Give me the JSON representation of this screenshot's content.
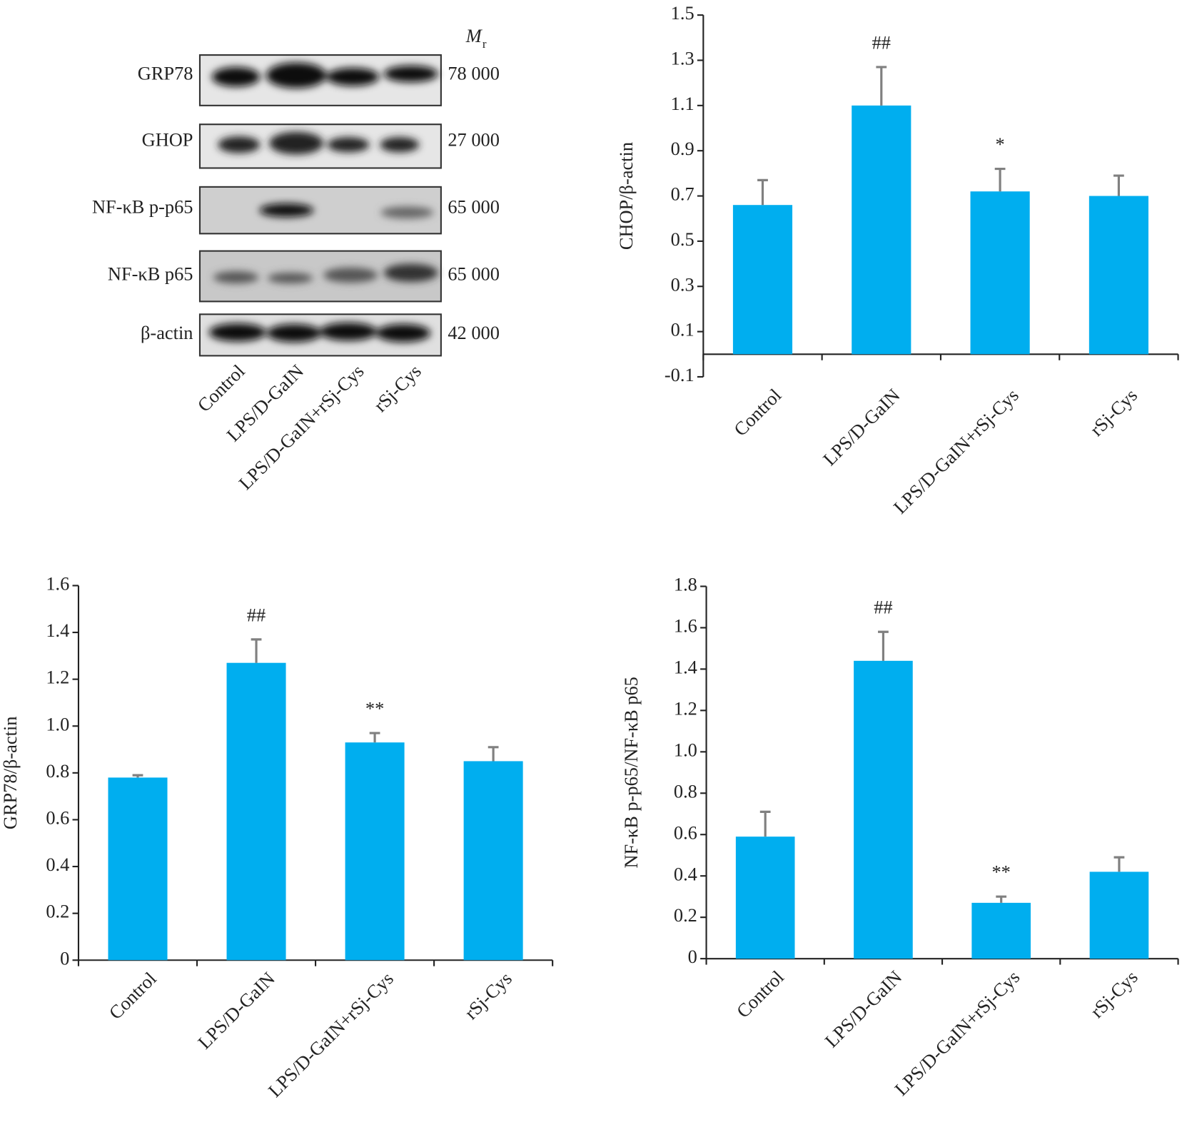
{
  "blot": {
    "mr_header": {
      "symbol": "M",
      "subscript": "r"
    },
    "rows": [
      {
        "label": "GRP78",
        "mr": "78 000"
      },
      {
        "label": "GHOP",
        "mr": "27 000"
      },
      {
        "label": "NF-κB p-p65",
        "mr": "65 000"
      },
      {
        "label": "NF-κB p65",
        "mr": "65 000"
      },
      {
        "label": "β-actin",
        "mr": "42 000"
      }
    ],
    "lanes": [
      "Control",
      "LPS/D-GaIN",
      "LPS/D-GaIN+rSj-Cys",
      "rSj-Cys"
    ]
  },
  "chart_data": [
    {
      "type": "bar",
      "ylabel": "CHOP/β-actin",
      "categories": [
        "Control",
        "LPS/D-GaIN",
        "LPS/D-GaIN+rSj-Cys",
        "rSj-Cys"
      ],
      "values": [
        0.66,
        1.1,
        0.72,
        0.7
      ],
      "errors": [
        0.11,
        0.17,
        0.1,
        0.09
      ],
      "annotations": [
        null,
        "##",
        "*",
        null
      ],
      "color": "#00aeef",
      "error_color": "#808080",
      "ylim": [
        -0.1,
        1.5
      ],
      "yticks": [
        -0.1,
        0.1,
        0.3,
        0.5,
        0.7,
        0.9,
        1.1,
        1.3,
        1.5
      ]
    },
    {
      "type": "bar",
      "ylabel": "GRP78/β-actin",
      "categories": [
        "Control",
        "LPS/D-GaIN",
        "LPS/D-GaIN+rSj-Cys",
        "rSj-Cys"
      ],
      "values": [
        0.78,
        1.27,
        0.93,
        0.85
      ],
      "errors": [
        0.01,
        0.1,
        0.04,
        0.06
      ],
      "annotations": [
        null,
        "##",
        "**",
        null
      ],
      "color": "#00aeef",
      "error_color": "#808080",
      "ylim": [
        0,
        1.6
      ],
      "yticks": [
        0,
        0.2,
        0.4,
        0.6,
        0.8,
        {
          "value": 1,
          "label": "1.0"
        },
        1.2,
        1.4,
        1.6
      ]
    },
    {
      "type": "bar",
      "ylabel": "NF-κB p-p65/NF-κB p65",
      "categories": [
        "Control",
        "LPS/D-GaIN",
        "LPS/D-GaIN+rSj-Cys",
        "rSj-Cys"
      ],
      "values": [
        0.59,
        1.44,
        0.27,
        0.42
      ],
      "errors": [
        0.12,
        0.14,
        0.03,
        0.07
      ],
      "annotations": [
        null,
        "##",
        "**",
        null
      ],
      "color": "#00aeef",
      "error_color": "#808080",
      "ylim": [
        0,
        1.8
      ],
      "yticks": [
        0,
        0.2,
        0.4,
        0.6,
        0.8,
        {
          "value": 1,
          "label": "1.0"
        },
        1.2,
        1.4,
        1.6,
        1.8
      ]
    }
  ]
}
